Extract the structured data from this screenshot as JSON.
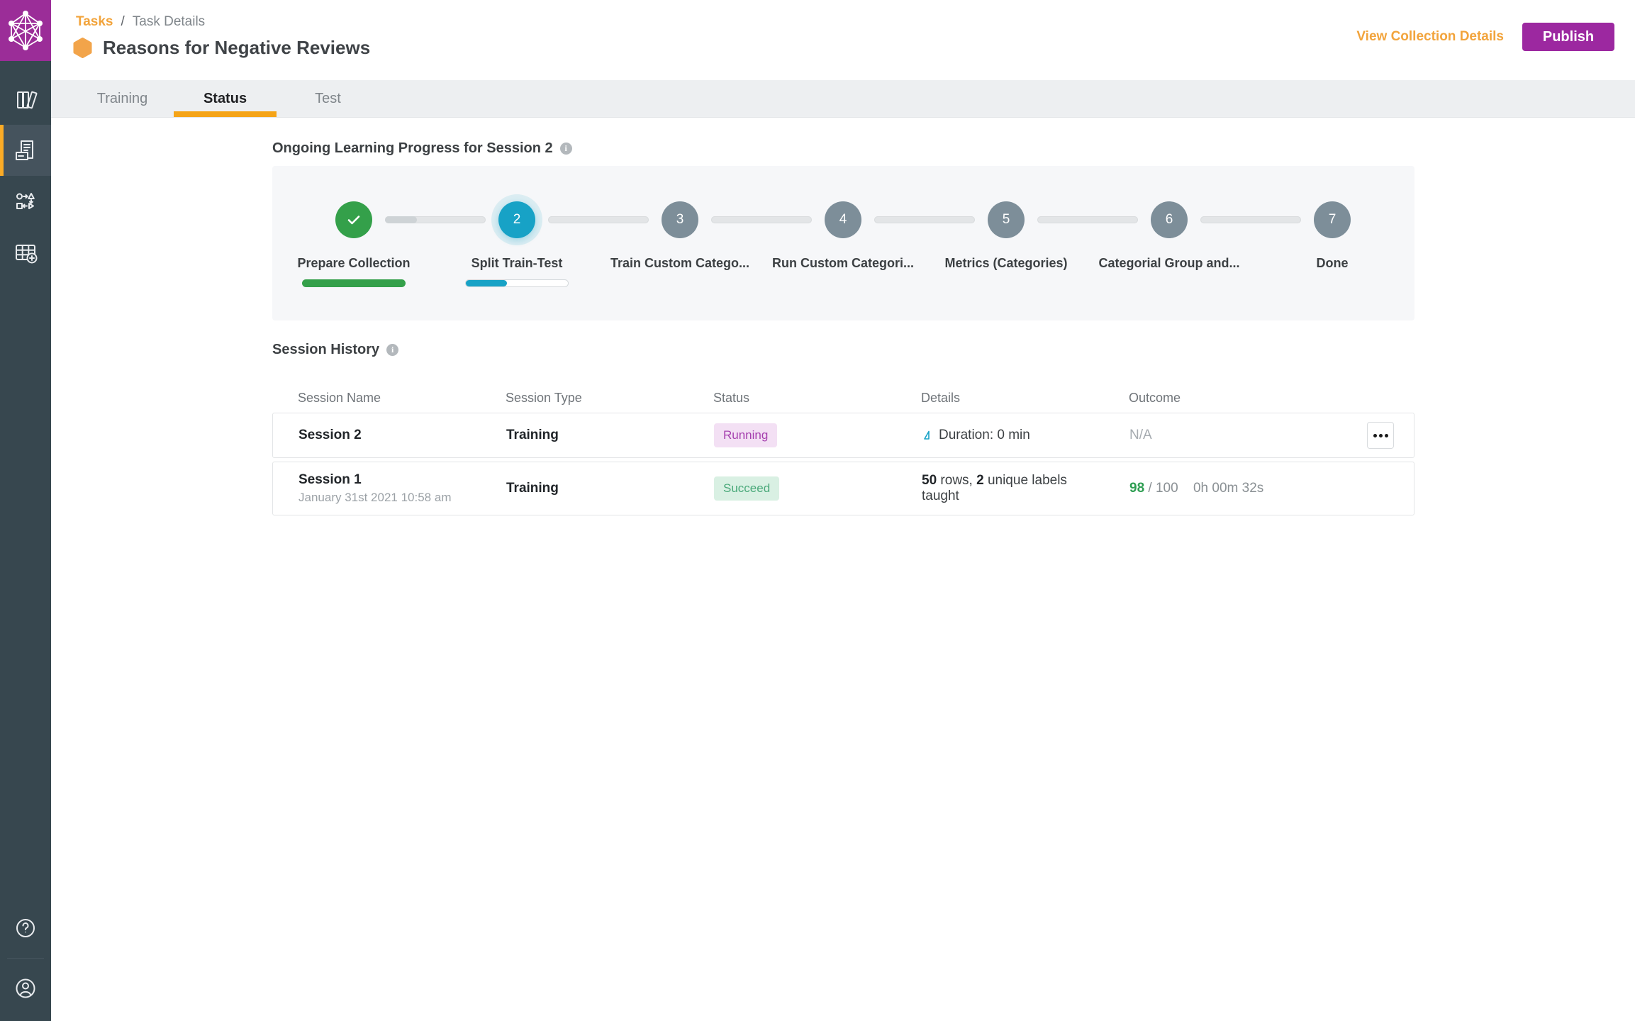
{
  "colors": {
    "accent_orange": "#F2A43C",
    "brand_purple": "#9C28A0",
    "teal_active": "#17A2C6",
    "green_done": "#34A04A",
    "slate_pending": "#7D8E99",
    "badge_running_text": "#A53FAE",
    "badge_succeed_text": "#4AA97A"
  },
  "sidebar": {
    "items": [
      {
        "name": "library"
      },
      {
        "name": "tasks"
      },
      {
        "name": "workflow"
      },
      {
        "name": "collections"
      }
    ],
    "bottom": [
      {
        "name": "help"
      },
      {
        "name": "account"
      }
    ]
  },
  "breadcrumb": {
    "root": "Tasks",
    "separator": "/",
    "current": "Task Details"
  },
  "header": {
    "title": "Reasons for Negative Reviews",
    "view_collection_label": "View Collection Details",
    "publish_label": "Publish"
  },
  "tabs": [
    {
      "label": "Training"
    },
    {
      "label": "Status"
    },
    {
      "label": "Test"
    }
  ],
  "progress": {
    "heading": "Ongoing Learning Progress for Session 2",
    "steps": [
      {
        "marker": "check",
        "label": "Prepare Collection",
        "state": "done",
        "progress_pct": 100
      },
      {
        "marker": "2",
        "label": "Split Train-Test",
        "state": "active",
        "progress_pct": 40
      },
      {
        "marker": "3",
        "label": "Train Custom Catego...",
        "state": "pending"
      },
      {
        "marker": "4",
        "label": "Run Custom Categori...",
        "state": "pending"
      },
      {
        "marker": "5",
        "label": "Metrics (Categories)",
        "state": "pending"
      },
      {
        "marker": "6",
        "label": "Categorial Group and...",
        "state": "pending"
      },
      {
        "marker": "7",
        "label": "Done",
        "state": "pending"
      }
    ]
  },
  "history": {
    "heading": "Session History",
    "columns": [
      "Session Name",
      "Session Type",
      "Status",
      "Details",
      "Outcome"
    ],
    "rows": [
      {
        "name": "Session 2",
        "type": "Training",
        "status": "Running",
        "details": "Duration: 0 min",
        "outcome": "N/A"
      },
      {
        "name": "Session 1",
        "date": "January 31st 2021 10:58 am",
        "type": "Training",
        "status": "Succeed",
        "details_bold1": "50",
        "details_mid": " rows, ",
        "details_bold2": "2",
        "details_rest": " unique labels taught",
        "outcome_score": "98",
        "outcome_total": "/ 100",
        "outcome_duration": "0h 00m 32s"
      }
    ]
  }
}
